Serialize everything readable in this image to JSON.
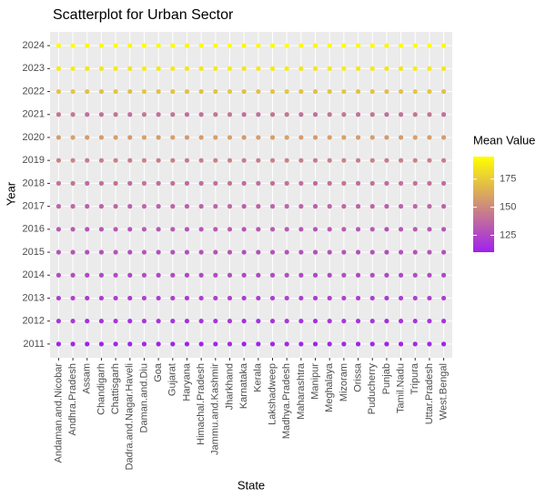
{
  "chart_data": {
    "type": "scatter",
    "title": "Scatterplot for Urban Sector",
    "x_label": "State",
    "y_label": "Year",
    "categories": [
      "Andaman.and.Nicobar",
      "Andhra.Pradesh",
      "Assam",
      "Chandigarh",
      "Chattisgarh",
      "Dadra.and.Nagar.Haveli",
      "Daman.and.Diu",
      "Goa",
      "Gujarat",
      "Haryana",
      "Himachal.Pradesh",
      "Jammu.and.Kashmir",
      "Jharkhand",
      "Karnataka",
      "Kerala",
      "Lakshadweep",
      "Madhya.Pradesh",
      "Maharashtra",
      "Manipur",
      "Meghalaya",
      "Mizoram",
      "Orissa",
      "Puducherry",
      "Punjab",
      "Tamil.Nadu",
      "Tripura",
      "Uttar.Pradesh",
      "West.Bengal"
    ],
    "y_categories": [
      2011,
      2012,
      2013,
      2014,
      2015,
      2016,
      2017,
      2018,
      2019,
      2020,
      2021,
      2022,
      2023,
      2024
    ],
    "values": [
      [
        112,
        113,
        110,
        111,
        112,
        110,
        113,
        111,
        112,
        110,
        111,
        112,
        113,
        110,
        111,
        112,
        113,
        111,
        110,
        112,
        113,
        111,
        112,
        110,
        111,
        113,
        112,
        111
      ],
      [
        118,
        119,
        116,
        117,
        118,
        116,
        119,
        117,
        118,
        116,
        117,
        118,
        119,
        116,
        117,
        118,
        119,
        117,
        116,
        118,
        119,
        117,
        118,
        116,
        117,
        119,
        118,
        117
      ],
      [
        122,
        123,
        120,
        121,
        122,
        120,
        123,
        121,
        122,
        120,
        121,
        122,
        123,
        120,
        121,
        122,
        123,
        121,
        120,
        122,
        123,
        121,
        122,
        120,
        121,
        123,
        122,
        121
      ],
      [
        126,
        127,
        124,
        125,
        126,
        124,
        127,
        125,
        126,
        124,
        125,
        126,
        127,
        124,
        125,
        126,
        127,
        125,
        124,
        126,
        127,
        125,
        126,
        124,
        125,
        127,
        126,
        125
      ],
      [
        129,
        130,
        127,
        128,
        129,
        127,
        130,
        128,
        129,
        127,
        128,
        129,
        130,
        127,
        128,
        129,
        130,
        128,
        127,
        129,
        130,
        128,
        129,
        127,
        128,
        130,
        129,
        128
      ],
      [
        132,
        133,
        130,
        131,
        132,
        130,
        133,
        131,
        132,
        130,
        131,
        132,
        133,
        130,
        131,
        132,
        133,
        131,
        130,
        132,
        133,
        131,
        132,
        130,
        131,
        133,
        132,
        131
      ],
      [
        136,
        137,
        134,
        135,
        136,
        134,
        137,
        135,
        136,
        134,
        135,
        136,
        137,
        134,
        135,
        136,
        137,
        135,
        134,
        136,
        137,
        135,
        136,
        134,
        135,
        137,
        136,
        135
      ],
      [
        141,
        142,
        139,
        140,
        141,
        139,
        142,
        140,
        141,
        139,
        140,
        141,
        142,
        139,
        140,
        141,
        142,
        140,
        139,
        141,
        142,
        140,
        141,
        139,
        140,
        142,
        141,
        140
      ],
      [
        147,
        148,
        145,
        146,
        147,
        145,
        148,
        146,
        147,
        145,
        146,
        147,
        148,
        145,
        146,
        147,
        148,
        146,
        145,
        147,
        148,
        146,
        147,
        145,
        146,
        148,
        147,
        146
      ],
      [
        158,
        159,
        156,
        157,
        158,
        156,
        159,
        157,
        158,
        156,
        157,
        158,
        159,
        156,
        157,
        158,
        159,
        157,
        156,
        158,
        159,
        157,
        158,
        156,
        157,
        159,
        158,
        157
      ],
      [
        142,
        143,
        140,
        141,
        142,
        140,
        143,
        141,
        142,
        140,
        141,
        142,
        143,
        140,
        141,
        142,
        143,
        141,
        140,
        142,
        143,
        141,
        142,
        140,
        141,
        143,
        142,
        141
      ],
      [
        172,
        173,
        170,
        171,
        172,
        170,
        173,
        171,
        172,
        170,
        171,
        172,
        173,
        170,
        171,
        172,
        173,
        171,
        170,
        172,
        173,
        171,
        172,
        170,
        171,
        173,
        172,
        171
      ],
      [
        187,
        188,
        185,
        186,
        187,
        185,
        188,
        186,
        187,
        185,
        186,
        187,
        188,
        185,
        186,
        187,
        188,
        186,
        185,
        187,
        188,
        186,
        187,
        185,
        186,
        188,
        187,
        186
      ],
      [
        194,
        195,
        192,
        193,
        194,
        192,
        195,
        193,
        194,
        192,
        193,
        194,
        195,
        192,
        193,
        194,
        195,
        193,
        192,
        194,
        195,
        193,
        194,
        192,
        193,
        195,
        194,
        193
      ]
    ],
    "colorbar": {
      "title": "Mean Value",
      "lim": [
        110,
        195
      ],
      "ticks": [
        125,
        150,
        175
      ],
      "low": "#a020f0",
      "high": "#ffff00"
    },
    "grid": true
  }
}
